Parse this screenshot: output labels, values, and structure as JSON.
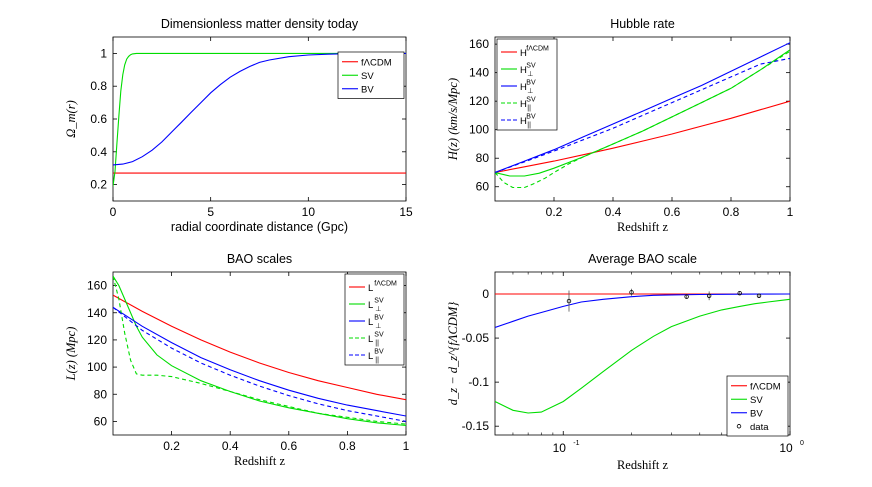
{
  "chart_data": [
    {
      "type": "line",
      "title": "Dimensionless matter density today",
      "xlabel": "radial coordinate distance (Gpc)",
      "ylabel": "Ω_m(r)",
      "xlim": [
        0,
        15
      ],
      "ylim": [
        0.1,
        1.1
      ],
      "xticks": [
        0,
        5,
        10,
        15
      ],
      "xtick_labels": [
        "0",
        "5",
        "10",
        "15"
      ],
      "yticks": [
        0.2,
        0.4,
        0.6,
        0.8,
        1.0
      ],
      "ytick_labels": [
        "0.2",
        "0.4",
        "0.6",
        "0.8",
        "1"
      ],
      "series": [
        {
          "name": "fΛCDM",
          "color": "#ff0000",
          "dash": false,
          "x": [
            0,
            15
          ],
          "y": [
            0.27,
            0.27
          ]
        },
        {
          "name": "SV",
          "color": "#00dd00",
          "dash": false,
          "x": [
            0,
            0.1,
            0.2,
            0.3,
            0.4,
            0.5,
            0.6,
            0.7,
            0.8,
            0.9,
            1.0,
            1.2,
            1.5,
            3,
            6,
            10,
            15
          ],
          "y": [
            0.19,
            0.28,
            0.45,
            0.62,
            0.77,
            0.87,
            0.93,
            0.965,
            0.982,
            0.992,
            0.997,
            1.0,
            1.0,
            1.0,
            1.0,
            1.0,
            1.0
          ]
        },
        {
          "name": "BV",
          "color": "#0000ff",
          "dash": false,
          "x": [
            0,
            0.5,
            1,
            1.5,
            2,
            2.5,
            3,
            3.5,
            4,
            4.5,
            5,
            5.5,
            6,
            6.5,
            7,
            7.5,
            8,
            9,
            10,
            11,
            12,
            13,
            14,
            15
          ],
          "y": [
            0.32,
            0.325,
            0.34,
            0.37,
            0.41,
            0.46,
            0.52,
            0.58,
            0.64,
            0.7,
            0.76,
            0.81,
            0.855,
            0.89,
            0.92,
            0.945,
            0.96,
            0.98,
            0.99,
            0.995,
            0.998,
            0.999,
            1.0,
            1.0
          ]
        }
      ],
      "legend": {
        "position": "top-right",
        "entries": [
          "fΛCDM",
          "SV",
          "BV"
        ]
      }
    },
    {
      "type": "line",
      "title": "Hubble rate",
      "xlabel": "Redshift z",
      "ylabel": "H(z) (km/s/Mpc)",
      "xlim": [
        0,
        1
      ],
      "ylim": [
        50,
        165
      ],
      "xticks": [
        0.2,
        0.4,
        0.6,
        0.8,
        1.0
      ],
      "xtick_labels": [
        "0.2",
        "0.4",
        "0.6",
        "0.8",
        "1"
      ],
      "yticks": [
        60,
        80,
        100,
        120,
        140,
        160
      ],
      "ytick_labels": [
        "60",
        "80",
        "100",
        "120",
        "140",
        "160"
      ],
      "series": [
        {
          "name": "H^fΛCDM",
          "color": "#ff0000",
          "dash": false,
          "x": [
            0,
            0.1,
            0.2,
            0.3,
            0.4,
            0.5,
            0.6,
            0.7,
            0.8,
            0.9,
            1.0
          ],
          "y": [
            70,
            74,
            78,
            82.5,
            87,
            92,
            97,
            102.5,
            108,
            114,
            120
          ]
        },
        {
          "name": "H_⊥^SV",
          "color": "#00dd00",
          "dash": false,
          "x": [
            0,
            0.05,
            0.1,
            0.15,
            0.2,
            0.3,
            0.4,
            0.5,
            0.6,
            0.7,
            0.8,
            0.9,
            1.0
          ],
          "y": [
            70,
            67.5,
            67.5,
            69.5,
            73,
            81,
            90,
            99,
            109,
            119,
            129,
            142,
            156
          ]
        },
        {
          "name": "H_⊥^BV",
          "color": "#0000ff",
          "dash": false,
          "x": [
            0,
            0.1,
            0.2,
            0.3,
            0.4,
            0.5,
            0.6,
            0.7,
            0.8,
            0.9,
            1.0
          ],
          "y": [
            70,
            78,
            86,
            95,
            104,
            113,
            122,
            131,
            141,
            151,
            161
          ]
        },
        {
          "name": "H_||^SV",
          "color": "#00dd00",
          "dash": true,
          "x": [
            0,
            0.03,
            0.06,
            0.1,
            0.13,
            0.17,
            0.2,
            0.25,
            0.3,
            0.4,
            0.5,
            0.6,
            0.7,
            0.8,
            0.9,
            1.0
          ],
          "y": [
            70,
            63,
            59.5,
            59.5,
            62,
            66,
            70,
            76,
            81,
            90,
            99,
            109,
            119,
            129,
            142,
            155
          ]
        },
        {
          "name": "H_||^BV",
          "color": "#0000ff",
          "dash": true,
          "x": [
            0,
            0.1,
            0.2,
            0.3,
            0.4,
            0.5,
            0.6,
            0.7,
            0.8,
            0.9,
            1.0
          ],
          "y": [
            70,
            77.5,
            85,
            93,
            101,
            110,
            119,
            128,
            137,
            146,
            150
          ]
        }
      ],
      "legend": {
        "position": "top-left",
        "entries": [
          "H^fΛCDM",
          "H_⊥^SV",
          "H_⊥^BV",
          "H_||^SV",
          "H_||^BV"
        ]
      }
    },
    {
      "type": "line",
      "title": "BAO scales",
      "xlabel": "Redshift z",
      "ylabel": "L(z) (Mpc)",
      "xlim": [
        0,
        1
      ],
      "ylim": [
        50,
        170
      ],
      "xticks": [
        0.2,
        0.4,
        0.6,
        0.8,
        1.0
      ],
      "xtick_labels": [
        "0.2",
        "0.4",
        "0.6",
        "0.8",
        "1"
      ],
      "yticks": [
        60,
        80,
        100,
        120,
        140,
        160
      ],
      "ytick_labels": [
        "60",
        "80",
        "100",
        "120",
        "140",
        "160"
      ],
      "series": [
        {
          "name": "L^fΛCDM",
          "color": "#ff0000",
          "dash": false,
          "x": [
            0,
            0.1,
            0.2,
            0.3,
            0.4,
            0.5,
            0.6,
            0.7,
            0.8,
            0.9,
            1.0
          ],
          "y": [
            153,
            141,
            130,
            120,
            111,
            103,
            96,
            90,
            85,
            80,
            76
          ]
        },
        {
          "name": "L_⊥^SV",
          "color": "#00dd00",
          "dash": false,
          "x": [
            0,
            0.02,
            0.05,
            0.08,
            0.1,
            0.15,
            0.2,
            0.3,
            0.4,
            0.5,
            0.6,
            0.7,
            0.8,
            0.9,
            1.0
          ],
          "y": [
            167,
            160,
            145,
            130,
            122,
            109,
            101,
            90,
            82,
            75,
            70,
            66,
            62,
            59,
            57
          ]
        },
        {
          "name": "L_⊥^BV",
          "color": "#0000ff",
          "dash": false,
          "x": [
            0,
            0.1,
            0.2,
            0.3,
            0.4,
            0.5,
            0.6,
            0.7,
            0.8,
            0.9,
            1.0
          ],
          "y": [
            144,
            130,
            118,
            107,
            98,
            90,
            83,
            77,
            72,
            68,
            64
          ]
        },
        {
          "name": "L_||^SV",
          "color": "#00dd00",
          "dash": true,
          "x": [
            0,
            0.02,
            0.04,
            0.06,
            0.08,
            0.1,
            0.15,
            0.2,
            0.3,
            0.4,
            0.5,
            0.6,
            0.7,
            0.8,
            0.9,
            1.0
          ],
          "y": [
            167,
            150,
            125,
            105,
            95,
            94,
            94,
            93,
            88,
            82,
            76,
            71,
            66,
            63,
            60,
            58
          ]
        },
        {
          "name": "L_||^BV",
          "color": "#0000ff",
          "dash": true,
          "x": [
            0,
            0.1,
            0.2,
            0.3,
            0.4,
            0.5,
            0.6,
            0.7,
            0.8,
            0.9,
            1.0
          ],
          "y": [
            144,
            127,
            114,
            103,
            94,
            86,
            79,
            73,
            68,
            64,
            60
          ]
        }
      ],
      "legend": {
        "position": "top-right",
        "entries": [
          "L^fΛCDM",
          "L_⊥^SV",
          "L_⊥^BV",
          "L_||^SV",
          "L_||^BV"
        ]
      }
    },
    {
      "type": "line",
      "title": "Average BAO scale",
      "xlabel": "Redshift z",
      "ylabel": "d_z − d_z^{fΛCDM}",
      "xscale": "log",
      "xlim": [
        0.05,
        1
      ],
      "ylim": [
        -0.16,
        0.025
      ],
      "xticks": [
        0.1,
        1
      ],
      "xtick_labels": [
        "10^-1",
        "10^0"
      ],
      "yticks": [
        -0.15,
        -0.1,
        -0.05,
        0
      ],
      "ytick_labels": [
        "-0.15",
        "-0.1",
        "-0.05",
        "0"
      ],
      "series": [
        {
          "name": "fΛCDM",
          "color": "#ff0000",
          "dash": false,
          "x": [
            0.05,
            1
          ],
          "y": [
            0,
            0
          ]
        },
        {
          "name": "SV",
          "color": "#00dd00",
          "dash": false,
          "x": [
            0.05,
            0.06,
            0.07,
            0.08,
            0.1,
            0.12,
            0.15,
            0.2,
            0.25,
            0.3,
            0.4,
            0.5,
            0.6,
            0.7,
            0.8,
            0.9,
            1.0
          ],
          "y": [
            -0.122,
            -0.132,
            -0.135,
            -0.134,
            -0.122,
            -0.107,
            -0.088,
            -0.064,
            -0.048,
            -0.037,
            -0.025,
            -0.018,
            -0.014,
            -0.011,
            -0.009,
            -0.0075,
            -0.006
          ]
        },
        {
          "name": "BV",
          "color": "#0000ff",
          "dash": false,
          "x": [
            0.05,
            0.06,
            0.07,
            0.08,
            0.1,
            0.12,
            0.15,
            0.2,
            0.25,
            0.3,
            0.4,
            0.5,
            0.6,
            0.7,
            0.8,
            1.0
          ],
          "y": [
            -0.038,
            -0.031,
            -0.025,
            -0.021,
            -0.014,
            -0.009,
            -0.006,
            -0.003,
            -0.0015,
            -0.001,
            -0.0005,
            -0.0003,
            -0.0002,
            -0.0001,
            -0.0001,
            0
          ]
        }
      ],
      "points": {
        "name": "data",
        "x": [
          0.106,
          0.2,
          0.35,
          0.44,
          0.6,
          0.73
        ],
        "y": [
          -0.008,
          0.002,
          -0.003,
          -0.002,
          0.001,
          -0.002
        ],
        "err": [
          0.012,
          0.004,
          0.002,
          0.005,
          0.002,
          0.002
        ]
      },
      "legend": {
        "position": "bottom-right",
        "entries": [
          "fΛCDM",
          "SV",
          "BV",
          "data"
        ]
      }
    }
  ]
}
